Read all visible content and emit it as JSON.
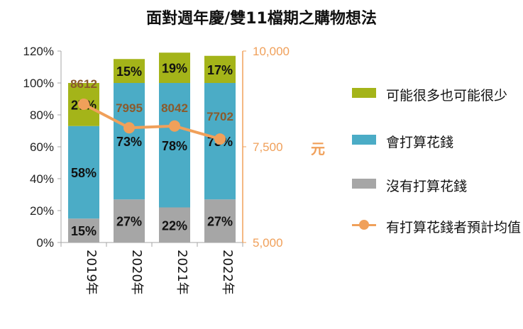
{
  "title": "面對週年慶/雙11檔期之購物想法",
  "colors": {
    "none": "#A6A6A6",
    "will": "#4BACC6",
    "maybe": "#A4B419",
    "avg": "#F0A05A",
    "value_label": "#8B5A2B",
    "right_axis": "#F0A05A"
  },
  "chart_data": {
    "type": "bar",
    "categories": [
      "2019年",
      "2020年",
      "2021年",
      "2022年"
    ],
    "series": [
      {
        "name": "沒有打算花錢",
        "values": [
          15,
          27,
          22,
          27
        ],
        "labels": [
          "15%",
          "27%",
          "22%",
          "27%"
        ]
      },
      {
        "name": "會打算花錢",
        "values": [
          58,
          73,
          78,
          73
        ],
        "labels": [
          "58%",
          "73%",
          "78%",
          "73%"
        ]
      },
      {
        "name": "可能很多也可能很少",
        "values": [
          27,
          15,
          19,
          17
        ],
        "labels": [
          "27%",
          "15%",
          "19%",
          "17%"
        ]
      }
    ],
    "line_series": {
      "name": "有打算花錢者預計均值",
      "values": [
        8612,
        7995,
        8042,
        7702
      ],
      "labels": [
        "8612",
        "7995",
        "8042",
        "7702"
      ]
    },
    "y_ticks": [
      "0%",
      "20%",
      "40%",
      "60%",
      "80%",
      "100%",
      "120%"
    ],
    "ylim": [
      0,
      120
    ],
    "y2_ticks": [
      "5,000",
      "7,500",
      "10,000"
    ],
    "y2lim": [
      5000,
      10000
    ],
    "y2label": "元"
  },
  "legend": [
    {
      "label": "可能很多也可能很少"
    },
    {
      "label": "會打算花錢"
    },
    {
      "label": "沒有打算花錢"
    },
    {
      "label": "有打算花錢者預計均值"
    }
  ]
}
